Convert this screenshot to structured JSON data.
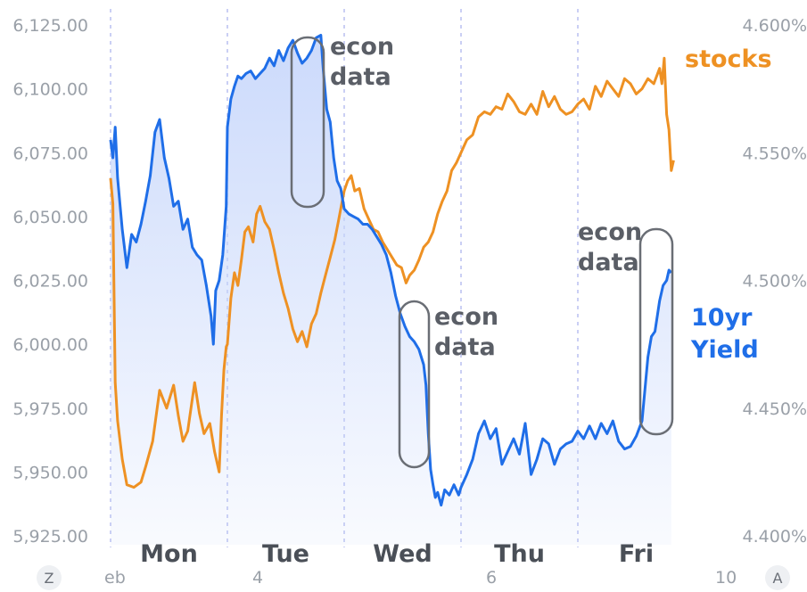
{
  "chart_data": {
    "type": "line",
    "title": "",
    "colors": {
      "stocks": "#ee9123",
      "yield": "#1f6ee8",
      "fill_top": "#cfdcfb",
      "grid": "#b8bff0"
    },
    "y_left": {
      "ticks": [
        "6,125.00",
        "6,100.00",
        "6,075.00",
        "6,050.00",
        "6,025.00",
        "6,000.00",
        "5,975.00",
        "5,950.00",
        "5,925.00"
      ],
      "range": [
        5925,
        6125
      ]
    },
    "y_right": {
      "ticks": [
        "4.600%",
        "4.550%",
        "4.500%",
        "4.450%",
        "4.400%"
      ],
      "range": [
        4.4,
        4.6
      ]
    },
    "days": [
      "Mon",
      "Tue",
      "Wed",
      "Thu",
      "Fri"
    ],
    "date_labels": [
      "eb",
      "4",
      "6",
      "10"
    ],
    "corner_labels": [
      "Z",
      "A"
    ],
    "series": [
      {
        "name": "stocks",
        "label": "stocks",
        "axis": "left",
        "points": [
          [
            0.0,
            6065
          ],
          [
            0.02,
            6055
          ],
          [
            0.04,
            5985
          ],
          [
            0.06,
            5970
          ],
          [
            0.1,
            5955
          ],
          [
            0.14,
            5945
          ],
          [
            0.2,
            5944
          ],
          [
            0.26,
            5946
          ],
          [
            0.3,
            5952
          ],
          [
            0.36,
            5962
          ],
          [
            0.42,
            5982
          ],
          [
            0.48,
            5975
          ],
          [
            0.54,
            5984
          ],
          [
            0.58,
            5972
          ],
          [
            0.62,
            5962
          ],
          [
            0.66,
            5966
          ],
          [
            0.72,
            5985
          ],
          [
            0.76,
            5973
          ],
          [
            0.8,
            5965
          ],
          [
            0.85,
            5969
          ],
          [
            0.89,
            5958
          ],
          [
            0.93,
            5950
          ],
          [
            0.95,
            5972
          ],
          [
            0.97,
            5990
          ],
          [
            0.99,
            5999
          ],
          [
            1.0,
            6000
          ],
          [
            1.03,
            6018
          ],
          [
            1.06,
            6028
          ],
          [
            1.09,
            6023
          ],
          [
            1.12,
            6033
          ],
          [
            1.15,
            6044
          ],
          [
            1.18,
            6046
          ],
          [
            1.22,
            6040
          ],
          [
            1.25,
            6051
          ],
          [
            1.28,
            6054
          ],
          [
            1.32,
            6048
          ],
          [
            1.36,
            6045
          ],
          [
            1.4,
            6037
          ],
          [
            1.44,
            6028
          ],
          [
            1.48,
            6020
          ],
          [
            1.52,
            6014
          ],
          [
            1.56,
            6006
          ],
          [
            1.6,
            6001
          ],
          [
            1.64,
            6005
          ],
          [
            1.68,
            5999
          ],
          [
            1.72,
            6008
          ],
          [
            1.76,
            6012
          ],
          [
            1.8,
            6020
          ],
          [
            1.84,
            6027
          ],
          [
            1.88,
            6034
          ],
          [
            1.92,
            6041
          ],
          [
            1.95,
            6048
          ],
          [
            1.97,
            6053
          ],
          [
            2.0,
            6060
          ],
          [
            2.03,
            6064
          ],
          [
            2.06,
            6066
          ],
          [
            2.09,
            6060
          ],
          [
            2.13,
            6061
          ],
          [
            2.17,
            6053
          ],
          [
            2.21,
            6049
          ],
          [
            2.25,
            6045
          ],
          [
            2.29,
            6044
          ],
          [
            2.33,
            6040
          ],
          [
            2.37,
            6037
          ],
          [
            2.41,
            6034
          ],
          [
            2.45,
            6031
          ],
          [
            2.49,
            6030
          ],
          [
            2.53,
            6024
          ],
          [
            2.56,
            6027
          ],
          [
            2.6,
            6029
          ],
          [
            2.64,
            6033
          ],
          [
            2.68,
            6038
          ],
          [
            2.72,
            6040
          ],
          [
            2.76,
            6044
          ],
          [
            2.8,
            6051
          ],
          [
            2.84,
            6056
          ],
          [
            2.88,
            6060
          ],
          [
            2.92,
            6068
          ],
          [
            2.96,
            6071
          ],
          [
            3.0,
            6075
          ],
          [
            3.05,
            6080
          ],
          [
            3.1,
            6082
          ],
          [
            3.15,
            6089
          ],
          [
            3.2,
            6091
          ],
          [
            3.25,
            6090
          ],
          [
            3.3,
            6093
          ],
          [
            3.35,
            6092
          ],
          [
            3.4,
            6098
          ],
          [
            3.45,
            6095
          ],
          [
            3.5,
            6091
          ],
          [
            3.55,
            6090
          ],
          [
            3.6,
            6094
          ],
          [
            3.65,
            6090
          ],
          [
            3.7,
            6099
          ],
          [
            3.75,
            6093
          ],
          [
            3.8,
            6097
          ],
          [
            3.85,
            6092
          ],
          [
            3.9,
            6090
          ],
          [
            3.95,
            6091
          ],
          [
            4.0,
            6094
          ],
          [
            4.05,
            6096
          ],
          [
            4.1,
            6092
          ],
          [
            4.15,
            6101
          ],
          [
            4.2,
            6097
          ],
          [
            4.25,
            6103
          ],
          [
            4.3,
            6100
          ],
          [
            4.35,
            6097
          ],
          [
            4.4,
            6104
          ],
          [
            4.45,
            6102
          ],
          [
            4.5,
            6098
          ],
          [
            4.55,
            6100
          ],
          [
            4.6,
            6104
          ],
          [
            4.65,
            6102
          ],
          [
            4.7,
            6108
          ],
          [
            4.72,
            6102
          ],
          [
            4.74,
            6112
          ],
          [
            4.76,
            6090
          ],
          [
            4.78,
            6084
          ],
          [
            4.8,
            6068
          ],
          [
            4.82,
            6072
          ]
        ]
      },
      {
        "name": "10yr Yield",
        "label": [
          "10yr",
          "Yield"
        ],
        "axis": "right",
        "points": [
          [
            0.0,
            4.555
          ],
          [
            0.02,
            4.548
          ],
          [
            0.04,
            4.56
          ],
          [
            0.06,
            4.54
          ],
          [
            0.1,
            4.52
          ],
          [
            0.14,
            4.505
          ],
          [
            0.18,
            4.518
          ],
          [
            0.22,
            4.515
          ],
          [
            0.26,
            4.522
          ],
          [
            0.3,
            4.531
          ],
          [
            0.34,
            4.541
          ],
          [
            0.38,
            4.558
          ],
          [
            0.42,
            4.563
          ],
          [
            0.46,
            4.548
          ],
          [
            0.5,
            4.54
          ],
          [
            0.54,
            4.529
          ],
          [
            0.58,
            4.531
          ],
          [
            0.62,
            4.52
          ],
          [
            0.66,
            4.524
          ],
          [
            0.7,
            4.513
          ],
          [
            0.74,
            4.51
          ],
          [
            0.78,
            4.508
          ],
          [
            0.82,
            4.498
          ],
          [
            0.86,
            4.486
          ],
          [
            0.88,
            4.475
          ],
          [
            0.9,
            4.496
          ],
          [
            0.93,
            4.5
          ],
          [
            0.96,
            4.51
          ],
          [
            0.99,
            4.529
          ],
          [
            1.0,
            4.56
          ],
          [
            1.03,
            4.571
          ],
          [
            1.06,
            4.576
          ],
          [
            1.09,
            4.58
          ],
          [
            1.12,
            4.579
          ],
          [
            1.16,
            4.581
          ],
          [
            1.2,
            4.582
          ],
          [
            1.24,
            4.579
          ],
          [
            1.28,
            4.581
          ],
          [
            1.32,
            4.583
          ],
          [
            1.36,
            4.587
          ],
          [
            1.4,
            4.584
          ],
          [
            1.44,
            4.59
          ],
          [
            1.48,
            4.586
          ],
          [
            1.52,
            4.591
          ],
          [
            1.56,
            4.594
          ],
          [
            1.6,
            4.589
          ],
          [
            1.64,
            4.585
          ],
          [
            1.68,
            4.587
          ],
          [
            1.72,
            4.59
          ],
          [
            1.76,
            4.595
          ],
          [
            1.8,
            4.596
          ],
          [
            1.82,
            4.583
          ],
          [
            1.85,
            4.567
          ],
          [
            1.88,
            4.562
          ],
          [
            1.91,
            4.548
          ],
          [
            1.94,
            4.539
          ],
          [
            1.97,
            4.536
          ],
          [
            2.0,
            4.528
          ],
          [
            2.04,
            4.526
          ],
          [
            2.08,
            4.525
          ],
          [
            2.12,
            4.524
          ],
          [
            2.16,
            4.522
          ],
          [
            2.2,
            4.522
          ],
          [
            2.24,
            4.52
          ],
          [
            2.28,
            4.517
          ],
          [
            2.32,
            4.514
          ],
          [
            2.36,
            4.51
          ],
          [
            2.4,
            4.503
          ],
          [
            2.44,
            4.494
          ],
          [
            2.48,
            4.487
          ],
          [
            2.52,
            4.482
          ],
          [
            2.56,
            4.478
          ],
          [
            2.6,
            4.476
          ],
          [
            2.64,
            4.473
          ],
          [
            2.68,
            4.467
          ],
          [
            2.7,
            4.459
          ],
          [
            2.72,
            4.44
          ],
          [
            2.74,
            4.426
          ],
          [
            2.76,
            4.42
          ],
          [
            2.78,
            4.415
          ],
          [
            2.8,
            4.417
          ],
          [
            2.83,
            4.412
          ],
          [
            2.86,
            4.418
          ],
          [
            2.9,
            4.416
          ],
          [
            2.94,
            4.42
          ],
          [
            2.98,
            4.416
          ],
          [
            3.0,
            4.419
          ],
          [
            3.05,
            4.424
          ],
          [
            3.1,
            4.43
          ],
          [
            3.15,
            4.44
          ],
          [
            3.2,
            4.445
          ],
          [
            3.25,
            4.438
          ],
          [
            3.3,
            4.442
          ],
          [
            3.35,
            4.428
          ],
          [
            3.4,
            4.433
          ],
          [
            3.45,
            4.438
          ],
          [
            3.5,
            4.432
          ],
          [
            3.55,
            4.444
          ],
          [
            3.6,
            4.424
          ],
          [
            3.65,
            4.43
          ],
          [
            3.7,
            4.438
          ],
          [
            3.75,
            4.436
          ],
          [
            3.8,
            4.428
          ],
          [
            3.85,
            4.434
          ],
          [
            3.9,
            4.436
          ],
          [
            3.95,
            4.437
          ],
          [
            4.0,
            4.441
          ],
          [
            4.05,
            4.438
          ],
          [
            4.1,
            4.443
          ],
          [
            4.15,
            4.438
          ],
          [
            4.2,
            4.444
          ],
          [
            4.25,
            4.44
          ],
          [
            4.3,
            4.445
          ],
          [
            4.35,
            4.437
          ],
          [
            4.4,
            4.434
          ],
          [
            4.45,
            4.435
          ],
          [
            4.5,
            4.439
          ],
          [
            4.55,
            4.445
          ],
          [
            4.6,
            4.47
          ],
          [
            4.63,
            4.478
          ],
          [
            4.66,
            4.48
          ],
          [
            4.7,
            4.492
          ],
          [
            4.73,
            4.498
          ],
          [
            4.76,
            4.5
          ],
          [
            4.78,
            4.504
          ],
          [
            4.8,
            4.503
          ]
        ]
      }
    ],
    "annotations": [
      {
        "text": [
          "econ",
          "data"
        ]
      },
      {
        "text": [
          "econ",
          "data"
        ]
      },
      {
        "text": [
          "econ",
          "data"
        ]
      }
    ]
  }
}
